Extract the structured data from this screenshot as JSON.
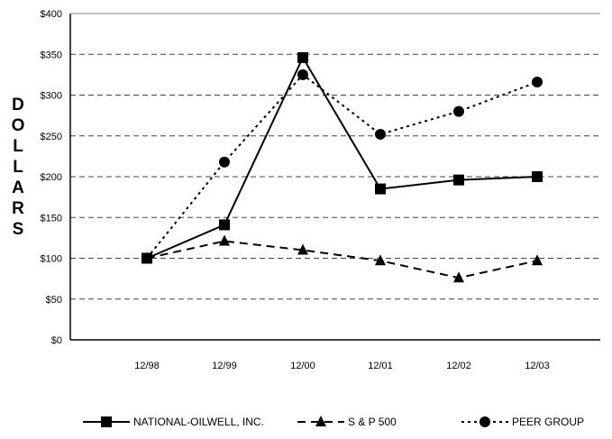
{
  "chart_data": {
    "type": "line",
    "title": "",
    "xlabel": "",
    "ylabel": "DOLLARS",
    "categories": [
      "12/98",
      "12/99",
      "12/00",
      "12/01",
      "12/02",
      "12/03"
    ],
    "ylim": [
      0,
      400
    ],
    "yticks": [
      0,
      50,
      100,
      150,
      200,
      250,
      300,
      350,
      400
    ],
    "ytick_labels": [
      "$0",
      "$50",
      "$100",
      "$150",
      "$200",
      "$250",
      "$300",
      "$350",
      "$400"
    ],
    "grid": "horizontal dashed",
    "legend_position": "bottom",
    "series": [
      {
        "name": "NATIONAL-OILWELL, INC.",
        "marker": "square",
        "line": "solid",
        "values": [
          100,
          141,
          346,
          185,
          196,
          200
        ]
      },
      {
        "name": "S & P 500",
        "marker": "triangle",
        "line": "dashed",
        "values": [
          100,
          121,
          110,
          97,
          76,
          97
        ]
      },
      {
        "name": "PEER GROUP",
        "marker": "circle",
        "line": "dotted",
        "values": [
          100,
          218,
          325,
          252,
          280,
          316
        ]
      }
    ]
  }
}
